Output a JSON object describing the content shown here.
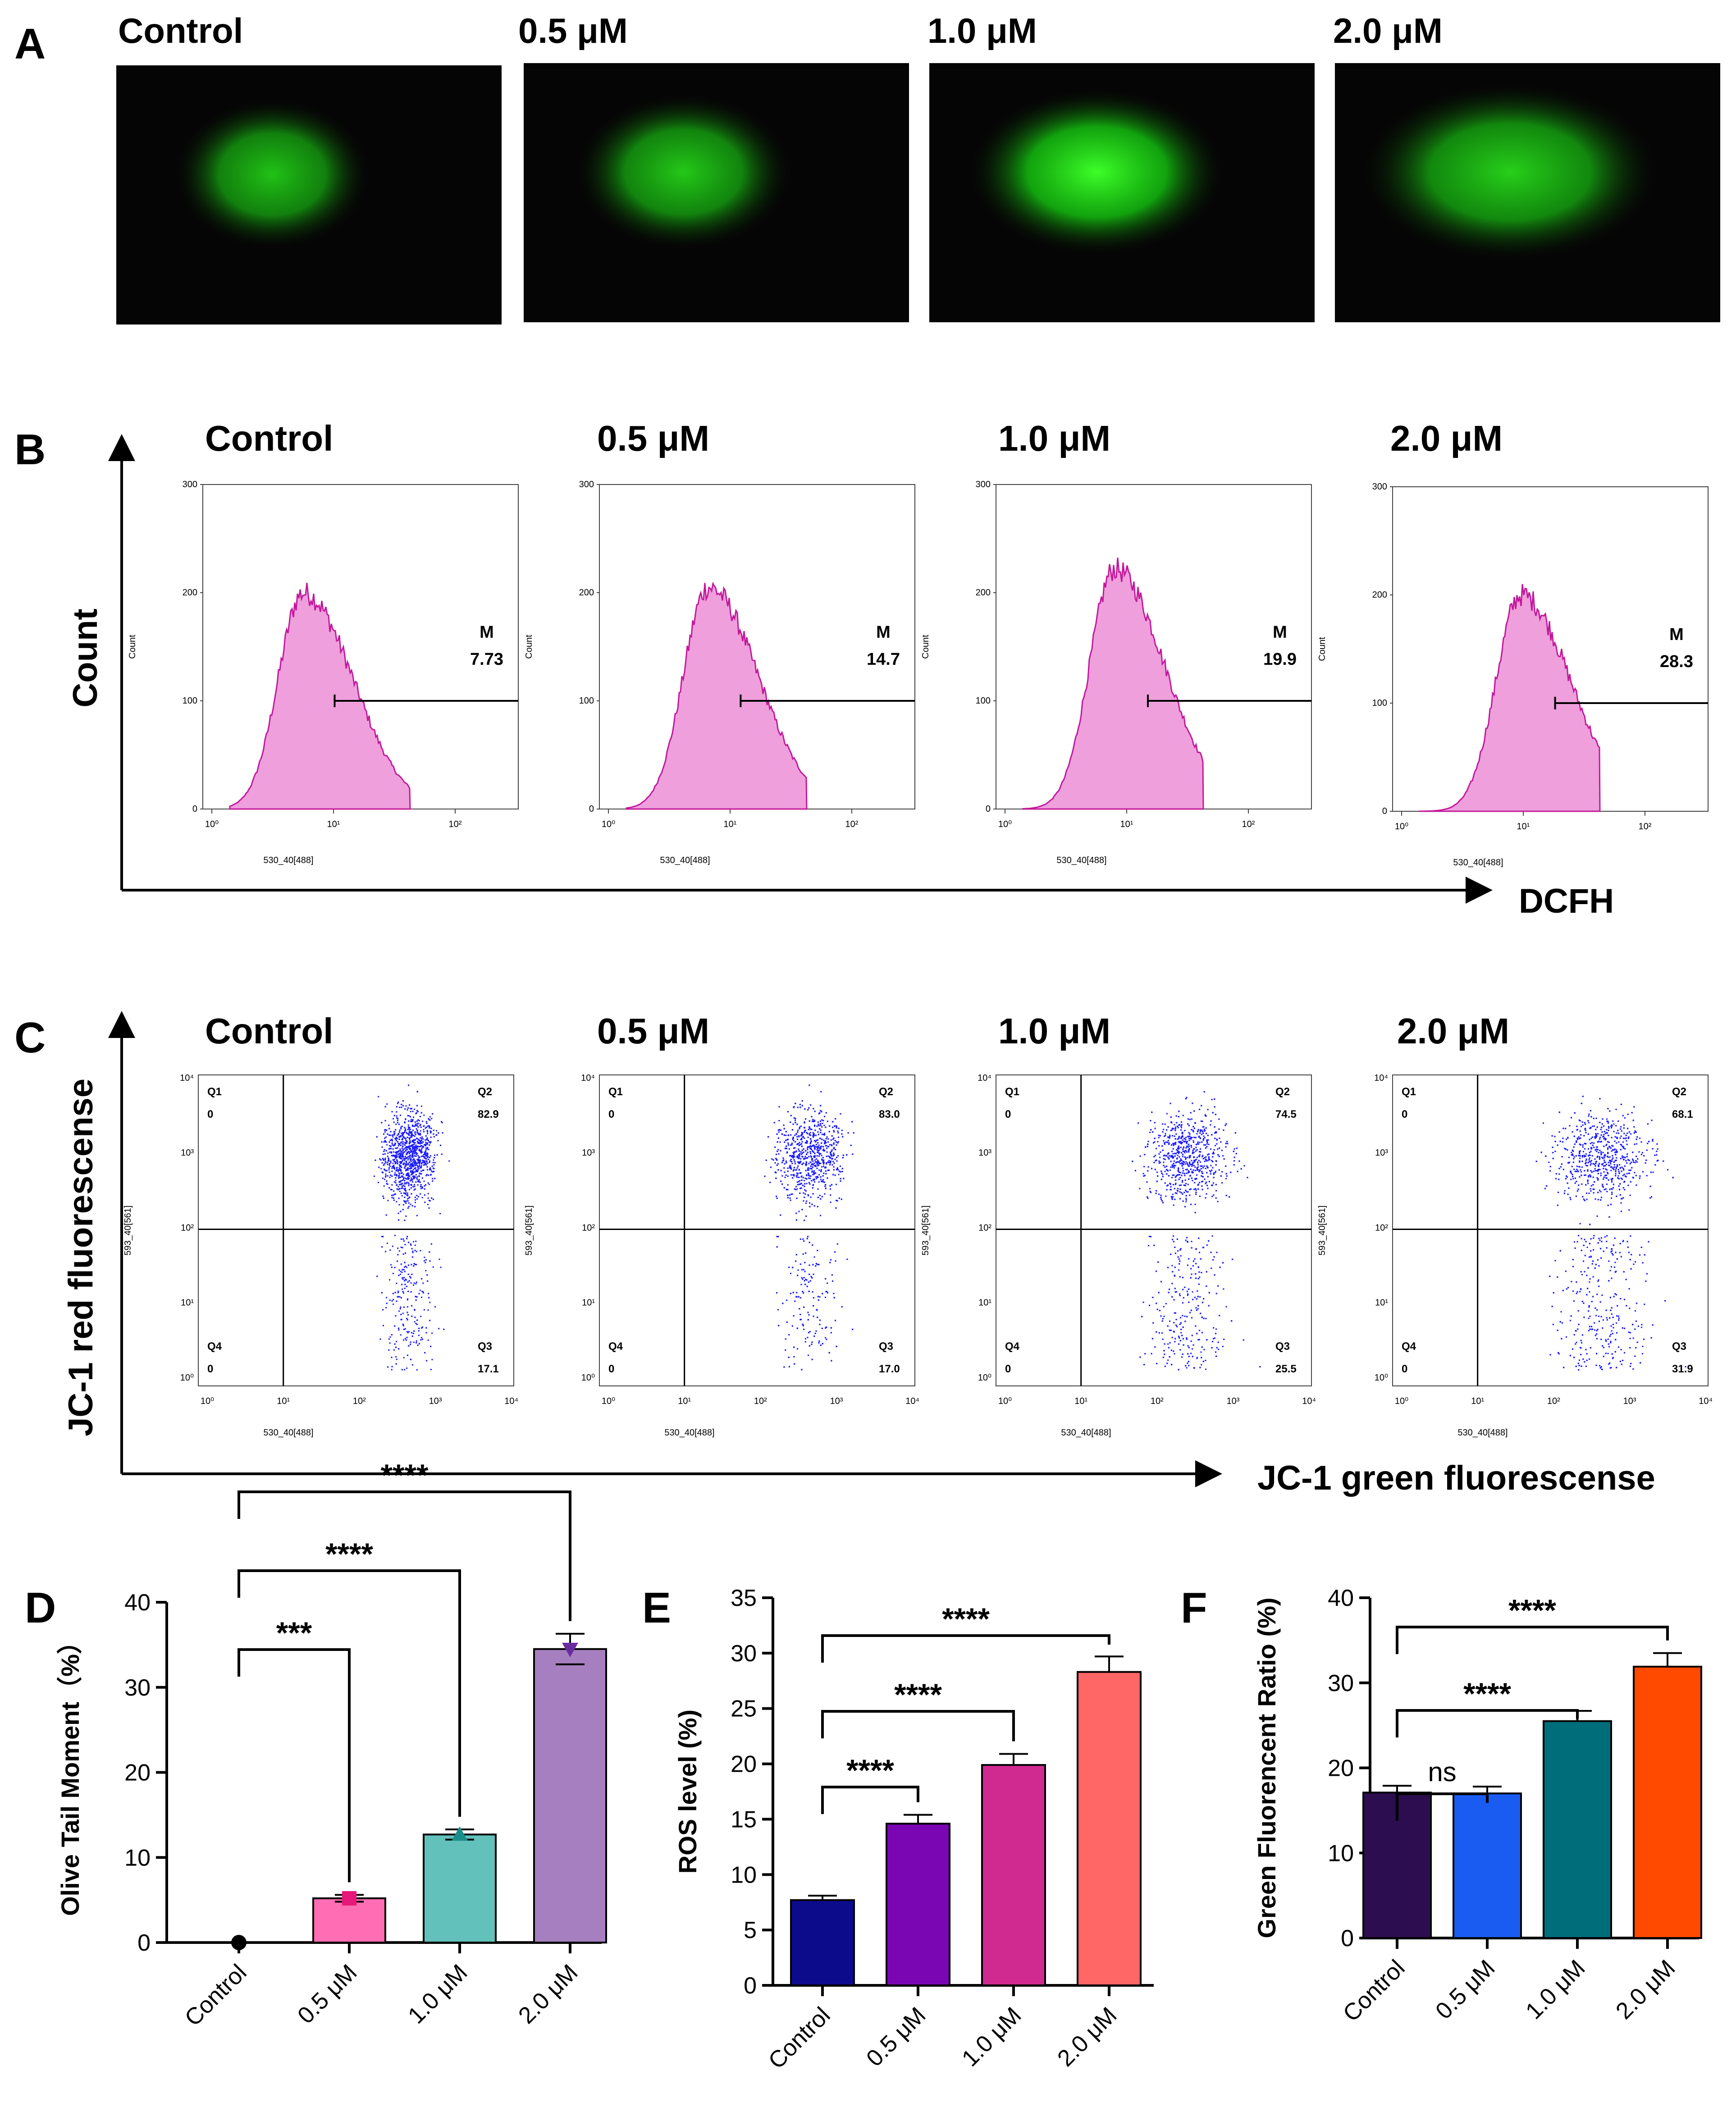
{
  "panel_a": {
    "letter": "A",
    "images": [
      {
        "label": "Control",
        "intensity": 0.55,
        "spread": 0.25
      },
      {
        "label": "0.5 μM",
        "intensity": 0.6,
        "spread": 0.35
      },
      {
        "label": "1.0 μM",
        "intensity": 1.0,
        "spread": 0.55
      },
      {
        "label": "2.0 μM",
        "intensity": 0.65,
        "spread": 0.75
      }
    ]
  },
  "panel_b": {
    "letter": "B",
    "y_axis_label": "Count",
    "x_axis_label": "DCFH",
    "inner_ylabel": "Count",
    "inner_xlabel": "530_40[488]",
    "y_ticks": [
      "300",
      "200",
      "100",
      "0"
    ],
    "x_ticks": [
      "10⁰",
      "10¹",
      "10²"
    ],
    "marker_title": "M",
    "histograms": [
      {
        "label": "Control",
        "m_value": "7.73",
        "peak": 200,
        "peak_pos": 0.75
      },
      {
        "label": "0.5 μM",
        "m_value": "14.7",
        "peak": 205,
        "peak_pos": 0.82
      },
      {
        "label": "1.0 μM",
        "m_value": "19.9",
        "peak": 222,
        "peak_pos": 0.9
      },
      {
        "label": "2.0 μM",
        "m_value": "28.3",
        "peak": 200,
        "peak_pos": 0.98
      }
    ]
  },
  "panel_c": {
    "letter": "C",
    "y_axis_label": "JC-1 red fluorescense",
    "x_axis_label": "JC-1 green fluorescense",
    "inner_ylabel": "593_40[561]",
    "inner_xlabel": "530_40[488]",
    "y_ticks": [
      "10⁴",
      "10³",
      "10²",
      "10¹",
      "10⁰"
    ],
    "x_ticks": [
      "10⁰",
      "10¹",
      "10²",
      "10³",
      "10⁴"
    ],
    "plots": [
      {
        "label": "Control",
        "q1": "Q1",
        "q1v": "0",
        "q2": "Q2",
        "q2v": "82.9",
        "q3": "Q3",
        "q3v": "17.1",
        "q4": "Q4",
        "q4v": "0"
      },
      {
        "label": "0.5 μM",
        "q1": "Q1",
        "q1v": "0",
        "q2": "Q2",
        "q2v": "83.0",
        "q3": "Q3",
        "q3v": "17.0",
        "q4": "Q4",
        "q4v": "0"
      },
      {
        "label": "1.0 μM",
        "q1": "Q1",
        "q1v": "0",
        "q2": "Q2",
        "q2v": "74.5",
        "q3": "Q3",
        "q3v": "25.5",
        "q4": "Q4",
        "q4v": "0"
      },
      {
        "label": "2.0 μM",
        "q1": "Q1",
        "q1v": "0",
        "q2": "Q2",
        "q2v": "68.1",
        "q3": "Q3",
        "q3v": "31.9",
        "q4": "Q4",
        "q4v": "0"
      }
    ]
  },
  "chart_data": [
    {
      "type": "bar",
      "panel": "D",
      "ylabel": "Olive Tail Moment（%）",
      "categories": [
        "Control",
        "0.5 μM",
        "1.0 μM",
        "2.0 μM"
      ],
      "values": [
        0,
        5.2,
        12.7,
        34.5
      ],
      "errors": [
        0,
        0.4,
        0.6,
        1.8
      ],
      "ylim": [
        0,
        40
      ],
      "yticks": [
        "0",
        "10",
        "20",
        "30",
        "40"
      ],
      "colors": [
        "#000000",
        "#ff6eb4",
        "#62c1bb",
        "#a67fc0"
      ],
      "markers": [
        "circle",
        "square",
        "triangle-up",
        "triangle-down"
      ],
      "marker_colors": [
        "#000000",
        "#e8177a",
        "#1a8f8a",
        "#6a2d9e"
      ],
      "significance": [
        {
          "to": 1,
          "label": "***"
        },
        {
          "to": 2,
          "label": "****"
        },
        {
          "to": 3,
          "label": "****"
        }
      ]
    },
    {
      "type": "bar",
      "panel": "E",
      "ylabel": "ROS level (%)",
      "categories": [
        "Control",
        "0.5 μM",
        "1.0 μM",
        "2.0 μM"
      ],
      "values": [
        7.7,
        14.6,
        19.9,
        28.3
      ],
      "errors": [
        0.4,
        0.8,
        1.0,
        1.4
      ],
      "ylim": [
        0,
        35
      ],
      "yticks": [
        "0",
        "5",
        "10",
        "15",
        "20",
        "25",
        "30",
        "35"
      ],
      "colors": [
        "#0c0b8c",
        "#7a06b3",
        "#d02a91",
        "#ff6666"
      ],
      "significance": [
        {
          "to": 1,
          "label": "****"
        },
        {
          "to": 2,
          "label": "****"
        },
        {
          "to": 3,
          "label": "****"
        }
      ]
    },
    {
      "type": "bar",
      "panel": "F",
      "ylabel": "Green Fluorencent Ratio (%)",
      "categories": [
        "Control",
        "0.5 μM",
        "1.0 μM",
        "2.0 μM"
      ],
      "values": [
        17.1,
        17.0,
        25.5,
        31.9
      ],
      "errors": [
        0.8,
        0.8,
        1.2,
        1.6
      ],
      "ylim": [
        0,
        40
      ],
      "yticks": [
        "0",
        "10",
        "20",
        "30",
        "40"
      ],
      "colors": [
        "#2c0d4f",
        "#1a5cf2",
        "#006d7a",
        "#ff4a00"
      ],
      "significance": [
        {
          "to": 1,
          "label": "ns"
        },
        {
          "to": 2,
          "label": "****"
        },
        {
          "to": 3,
          "label": "****"
        }
      ]
    }
  ]
}
